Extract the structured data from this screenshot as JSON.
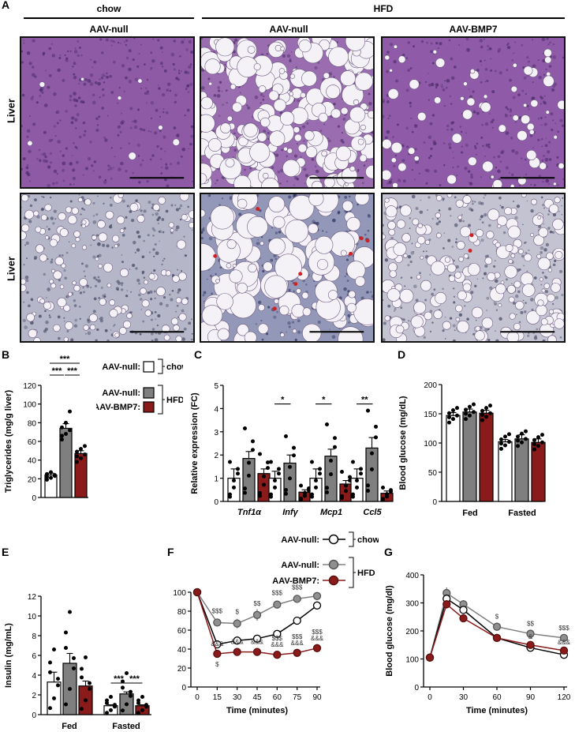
{
  "panelA": {
    "letter": "A",
    "group_chow": "chow",
    "group_hfd": "HFD",
    "col1": "AAV-null",
    "col2": "AAV-null",
    "col3": "AAV-BMP7",
    "row_label_top": "Liver",
    "row_label_bottom": "Liver"
  },
  "legend_top": {
    "null_label": "AAV-null:",
    "bmp7_label": "AAV-BMP7:",
    "chow": "chow",
    "hfd": "HFD"
  },
  "legend_F": {
    "null_label": "AAV-null:",
    "bmp7_label": "AAV-BMP7:",
    "chow": "chow",
    "hfd": "HFD"
  },
  "colors": {
    "chow": "#ffffff",
    "hfd_null": "#7f7f7f",
    "hfd_bmp7": "#8b1a1a",
    "chow_line": "#000000",
    "null_line": "#808080",
    "bmp7_line": "#8b1a1a"
  },
  "chart_data": [
    {
      "id": "B",
      "letter": "B",
      "type": "bar",
      "ylabel": "Triglycerides (mg/g liver)",
      "ylim": [
        0,
        120
      ],
      "yticks": [
        "0",
        "20",
        "40",
        "60",
        "80",
        "100",
        "120"
      ],
      "values": [
        24,
        74,
        47
      ],
      "errors": [
        2,
        5,
        3
      ],
      "significance": [
        "***",
        "***",
        "***"
      ],
      "points": [
        [
          19,
          21,
          23,
          25,
          27,
          24,
          22
        ],
        [
          62,
          68,
          72,
          75,
          80,
          92,
          66
        ],
        [
          38,
          42,
          46,
          49,
          52,
          55,
          44
        ]
      ]
    },
    {
      "id": "C",
      "letter": "C",
      "type": "bar",
      "ylabel": "Relative expression (FC)",
      "ylim": [
        0,
        5
      ],
      "yticks": [
        "0",
        "1",
        "2",
        "3",
        "4",
        "5"
      ],
      "categories": [
        "Tnf1α",
        "Infγ",
        "Mcp1",
        "Ccl5"
      ],
      "series": [
        {
          "values": [
            1.0,
            1.0,
            1.0,
            1.0
          ],
          "errors": [
            0.4,
            0.3,
            0.4,
            0.4
          ]
        },
        {
          "values": [
            1.85,
            1.65,
            1.95,
            2.3
          ],
          "errors": [
            0.3,
            0.35,
            0.3,
            0.45
          ]
        },
        {
          "values": [
            1.2,
            0.4,
            0.75,
            0.35
          ],
          "errors": [
            0.2,
            0.1,
            0.15,
            0.1
          ]
        }
      ],
      "significance": [
        "*",
        "*",
        "**"
      ]
    },
    {
      "id": "D",
      "letter": "D",
      "type": "bar",
      "ylabel": "Blood glucose (mg/dL)",
      "ylim": [
        0,
        200
      ],
      "yticks": [
        "0",
        "50",
        "100",
        "150",
        "200"
      ],
      "categories": [
        "Fed",
        "Fasted"
      ],
      "series": [
        {
          "values": [
            147,
            102
          ],
          "errors": [
            5,
            4
          ]
        },
        {
          "values": [
            153,
            107
          ],
          "errors": [
            5,
            7
          ]
        },
        {
          "values": [
            151,
            101
          ],
          "errors": [
            5,
            6
          ]
        }
      ]
    },
    {
      "id": "E",
      "letter": "E",
      "type": "bar",
      "ylabel": "Insulin (mg/mL)",
      "ylim": [
        0,
        12
      ],
      "yticks": [
        "0",
        "2",
        "4",
        "6",
        "8",
        "10",
        "12"
      ],
      "categories": [
        "Fed",
        "Fasted"
      ],
      "series": [
        {
          "values": [
            3.3,
            0.9
          ],
          "errors": [
            1.0,
            0.1
          ]
        },
        {
          "values": [
            5.2,
            2.1
          ],
          "errors": [
            1.0,
            0.2
          ]
        },
        {
          "values": [
            2.9,
            0.9
          ],
          "errors": [
            0.5,
            0.1
          ]
        }
      ],
      "significance": [
        "***",
        "***"
      ]
    },
    {
      "id": "F",
      "letter": "F",
      "type": "line",
      "ylabel": "Blood glucose (% of initial)",
      "xlabel": "Time (minutes)",
      "ylim": [
        0,
        100
      ],
      "yticks": [
        "0",
        "20",
        "40",
        "60",
        "80",
        "100"
      ],
      "xticks": [
        "0",
        "15",
        "30",
        "45",
        "60",
        "75",
        "90"
      ],
      "x": [
        0,
        15,
        30,
        45,
        60,
        75,
        90
      ],
      "series": [
        {
          "values": [
            100,
            45,
            49,
            51,
            56,
            70,
            86
          ],
          "errors": [
            0,
            2,
            2,
            2,
            2,
            3,
            3
          ]
        },
        {
          "values": [
            100,
            68,
            67,
            76,
            87,
            93,
            96
          ],
          "errors": [
            0,
            3,
            5,
            6,
            3,
            3,
            3
          ]
        },
        {
          "values": [
            100,
            35,
            37,
            37,
            34,
            36,
            41
          ],
          "errors": [
            0,
            2,
            2,
            2,
            2,
            2,
            2
          ]
        }
      ],
      "annotations_upper": [
        "$$$",
        "$",
        "$$",
        "$$$",
        "$$$"
      ],
      "annotations_lower": [
        "&&&",
        "&&&",
        "&&&",
        "$$$\n&&&",
        "$$$\n&&&",
        "$$$\n&&&"
      ],
      "annotation_extra": "$"
    },
    {
      "id": "G",
      "letter": "G",
      "type": "line",
      "ylabel": "Blood glucose (mg/dl)",
      "xlabel": "Time (minutes)",
      "ylim": [
        0,
        400
      ],
      "yticks": [
        "0",
        "100",
        "200",
        "300",
        "400"
      ],
      "xticks": [
        "0",
        "30",
        "60",
        "90",
        "120"
      ],
      "x": [
        0,
        15,
        30,
        60,
        90,
        120
      ],
      "series": [
        {
          "values": [
            105,
            315,
            275,
            175,
            140,
            115
          ],
          "errors": [
            5,
            15,
            10,
            8,
            6,
            5
          ]
        },
        {
          "values": [
            105,
            335,
            295,
            215,
            190,
            175
          ],
          "errors": [
            5,
            20,
            15,
            12,
            10,
            8
          ]
        },
        {
          "values": [
            105,
            295,
            245,
            175,
            150,
            130
          ],
          "errors": [
            5,
            15,
            10,
            8,
            6,
            5
          ]
        }
      ],
      "annotations_upper": [
        "$",
        "$$",
        "$$$"
      ],
      "annotations_lower": [
        "&",
        "&&&"
      ]
    }
  ]
}
